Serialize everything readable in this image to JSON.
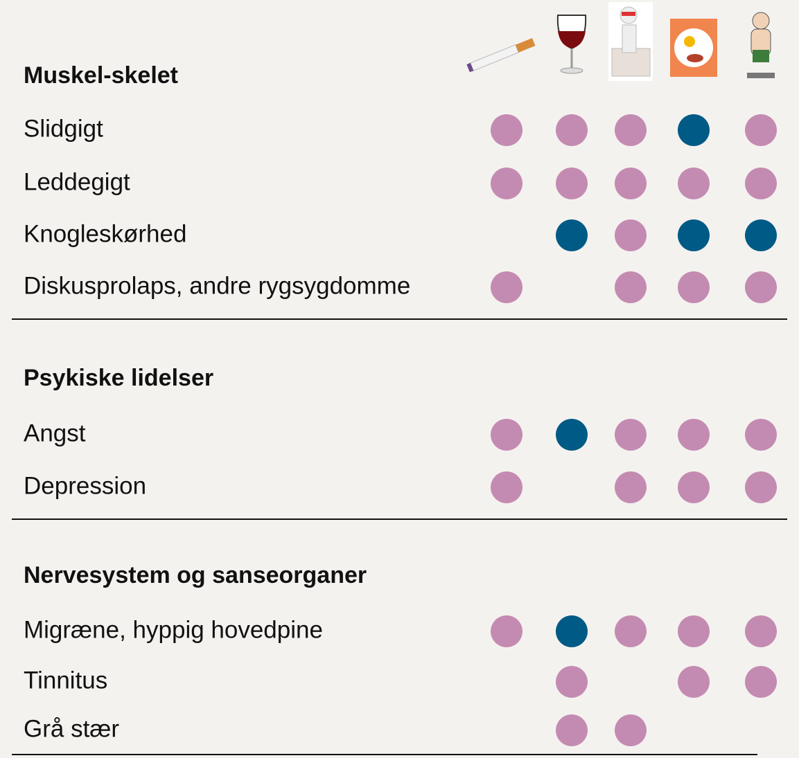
{
  "table": {
    "sections": [
      {
        "title": "Muskel-skelet",
        "rows": [
          {
            "label": "Slidgigt",
            "cells": [
              "#c48bb2",
              "#c48bb2",
              "#c48bb2",
              "#005a86",
              "#c48bb2"
            ]
          },
          {
            "label": "Leddegigt",
            "cells": [
              "#c48bb2",
              "#c48bb2",
              "#c48bb2",
              "#c48bb2",
              "#c48bb2"
            ]
          },
          {
            "label": "Knogleskørhed",
            "cells": [
              null,
              "#005a86",
              "#c48bb2",
              "#005a86",
              "#005a86"
            ]
          },
          {
            "label": "Diskusprolaps, andre rygsygdomme",
            "cells": [
              "#c48bb2",
              null,
              "#c48bb2",
              "#c48bb2",
              "#c48bb2"
            ]
          }
        ]
      },
      {
        "title": "Psykiske lidelser",
        "rows": [
          {
            "label": "Angst",
            "cells": [
              "#c48bb2",
              "#005a86",
              "#c48bb2",
              "#c48bb2",
              "#c48bb2"
            ]
          },
          {
            "label": "Depression",
            "cells": [
              "#c48bb2",
              null,
              "#c48bb2",
              "#c48bb2",
              "#c48bb2"
            ]
          }
        ]
      },
      {
        "title": "Nervesystem og sanseorganer",
        "rows": [
          {
            "label": "Migræne, hyppig hovedpine",
            "cells": [
              "#c48bb2",
              "#005a86",
              "#c48bb2",
              "#c48bb2",
              "#c48bb2"
            ]
          },
          {
            "label": "Tinnitus",
            "cells": [
              null,
              "#c48bb2",
              null,
              "#c48bb2",
              "#c48bb2"
            ]
          },
          {
            "label": "Grå stær",
            "cells": [
              null,
              "#c48bb2",
              "#c48bb2",
              null,
              null
            ]
          }
        ]
      }
    ]
  }
}
